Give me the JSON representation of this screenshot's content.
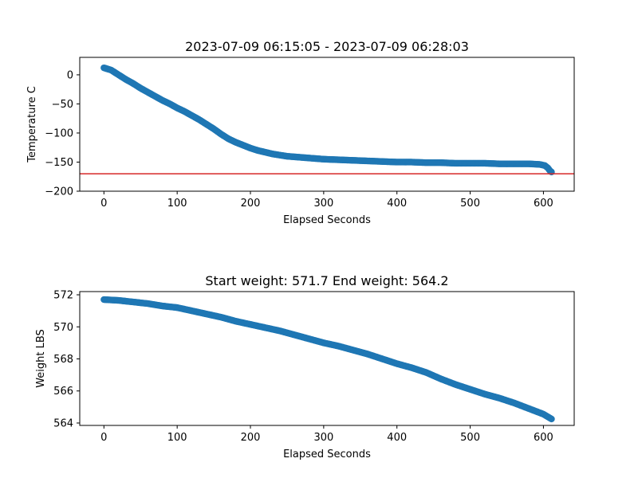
{
  "chart_data": [
    {
      "type": "scatter",
      "title": "2023-07-09 06:15:05 - 2023-07-09 06:28:03",
      "xlabel": "Elapsed Seconds",
      "ylabel": "Temperature C",
      "xlim": [
        -33,
        642
      ],
      "ylim": [
        -200,
        30
      ],
      "xticks": [
        0,
        100,
        200,
        300,
        400,
        500,
        600
      ],
      "yticks": [
        0,
        -50,
        -100,
        -150,
        -200
      ],
      "marker_color": "#1f77b4",
      "reference_line": {
        "y": -170,
        "color": "#d62728"
      },
      "curve": [
        [
          0,
          12
        ],
        [
          10,
          8
        ],
        [
          20,
          0
        ],
        [
          30,
          -8
        ],
        [
          40,
          -15
        ],
        [
          50,
          -23
        ],
        [
          60,
          -30
        ],
        [
          70,
          -37
        ],
        [
          80,
          -44
        ],
        [
          90,
          -50
        ],
        [
          100,
          -57
        ],
        [
          110,
          -63
        ],
        [
          120,
          -70
        ],
        [
          130,
          -77
        ],
        [
          140,
          -85
        ],
        [
          150,
          -93
        ],
        [
          160,
          -102
        ],
        [
          170,
          -110
        ],
        [
          180,
          -116
        ],
        [
          190,
          -121
        ],
        [
          200,
          -126
        ],
        [
          210,
          -130
        ],
        [
          220,
          -133
        ],
        [
          230,
          -136
        ],
        [
          240,
          -138
        ],
        [
          250,
          -140
        ],
        [
          260,
          -141
        ],
        [
          270,
          -142
        ],
        [
          280,
          -143
        ],
        [
          290,
          -144
        ],
        [
          300,
          -145
        ],
        [
          320,
          -146
        ],
        [
          340,
          -147
        ],
        [
          360,
          -148
        ],
        [
          380,
          -149
        ],
        [
          400,
          -150
        ],
        [
          420,
          -150
        ],
        [
          440,
          -151
        ],
        [
          460,
          -151
        ],
        [
          480,
          -152
        ],
        [
          500,
          -152
        ],
        [
          520,
          -152
        ],
        [
          540,
          -153
        ],
        [
          560,
          -153
        ],
        [
          580,
          -153
        ],
        [
          595,
          -154
        ],
        [
          602,
          -156
        ],
        [
          606,
          -160
        ],
        [
          609,
          -165
        ],
        [
          611,
          -167
        ]
      ]
    },
    {
      "type": "scatter",
      "title": "Start weight: 571.7 End weight: 564.2",
      "xlabel": "Elapsed Seconds",
      "ylabel": "Weight LBS",
      "xlim": [
        -33,
        642
      ],
      "ylim": [
        563.85,
        572.2
      ],
      "xticks": [
        0,
        100,
        200,
        300,
        400,
        500,
        600
      ],
      "yticks": [
        572,
        570,
        568,
        566,
        564
      ],
      "marker_color": "#1f77b4",
      "curve": [
        [
          0,
          571.7
        ],
        [
          20,
          571.65
        ],
        [
          40,
          571.55
        ],
        [
          60,
          571.45
        ],
        [
          80,
          571.3
        ],
        [
          100,
          571.2
        ],
        [
          120,
          571.0
        ],
        [
          140,
          570.8
        ],
        [
          160,
          570.6
        ],
        [
          180,
          570.35
        ],
        [
          200,
          570.15
        ],
        [
          220,
          569.95
        ],
        [
          240,
          569.75
        ],
        [
          260,
          569.5
        ],
        [
          280,
          569.25
        ],
        [
          300,
          569.0
        ],
        [
          320,
          568.8
        ],
        [
          340,
          568.55
        ],
        [
          360,
          568.3
        ],
        [
          380,
          568.0
        ],
        [
          400,
          567.7
        ],
        [
          420,
          567.45
        ],
        [
          440,
          567.15
        ],
        [
          460,
          566.75
        ],
        [
          480,
          566.4
        ],
        [
          500,
          566.1
        ],
        [
          520,
          565.8
        ],
        [
          540,
          565.55
        ],
        [
          560,
          565.25
        ],
        [
          580,
          564.9
        ],
        [
          600,
          564.55
        ],
        [
          611,
          564.25
        ]
      ]
    }
  ]
}
